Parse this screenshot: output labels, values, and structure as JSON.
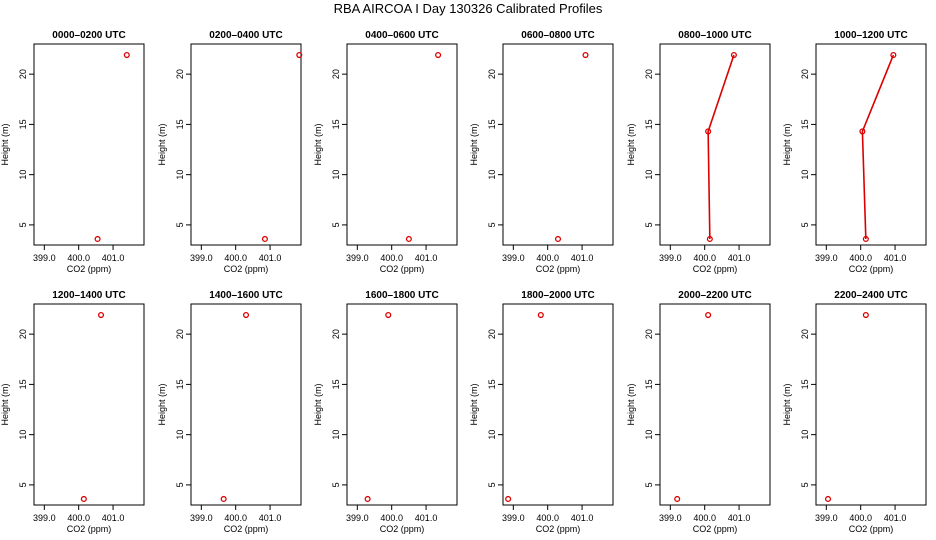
{
  "title": "RBA AIRCOA I  Day 130326  Calibrated Profiles",
  "colors": {
    "series": "#dd0000",
    "axis": "#000000"
  },
  "chart_data": [
    {
      "type": "line",
      "title": "0000–0200 UTC",
      "xlabel": "CO2 (ppm)",
      "ylabel": "Height (m)",
      "xlim": [
        398.7,
        401.9
      ],
      "ylim": [
        3,
        23
      ],
      "xticks": [
        399,
        400,
        401
      ],
      "xticklabels": [
        "399.0",
        "400.0",
        "401.0"
      ],
      "yticks": [
        5,
        10,
        15,
        20
      ],
      "yticklabels": [
        "5",
        "10",
        "15",
        "20"
      ],
      "points": [
        {
          "x": 400.55,
          "y": 3.6
        },
        {
          "x": 401.4,
          "y": 21.9
        }
      ],
      "connected": false
    },
    {
      "type": "line",
      "title": "0200–0400 UTC",
      "xlabel": "CO2 (ppm)",
      "ylabel": "Height (m)",
      "xlim": [
        398.7,
        401.9
      ],
      "ylim": [
        3,
        23
      ],
      "xticks": [
        399,
        400,
        401
      ],
      "xticklabels": [
        "399.0",
        "400.0",
        "401.0"
      ],
      "yticks": [
        5,
        10,
        15,
        20
      ],
      "yticklabels": [
        "5",
        "10",
        "15",
        "20"
      ],
      "points": [
        {
          "x": 400.85,
          "y": 3.6
        },
        {
          "x": 401.85,
          "y": 21.9
        }
      ],
      "connected": false
    },
    {
      "type": "line",
      "title": "0400–0600 UTC",
      "xlabel": "CO2 (ppm)",
      "ylabel": "Height (m)",
      "xlim": [
        398.7,
        401.9
      ],
      "ylim": [
        3,
        23
      ],
      "xticks": [
        399,
        400,
        401
      ],
      "xticklabels": [
        "399.0",
        "400.0",
        "401.0"
      ],
      "yticks": [
        5,
        10,
        15,
        20
      ],
      "yticklabels": [
        "5",
        "10",
        "15",
        "20"
      ],
      "points": [
        {
          "x": 400.5,
          "y": 3.6
        },
        {
          "x": 401.35,
          "y": 21.9
        }
      ],
      "connected": false
    },
    {
      "type": "line",
      "title": "0600–0800 UTC",
      "xlabel": "CO2 (ppm)",
      "ylabel": "Height (m)",
      "xlim": [
        398.7,
        401.9
      ],
      "ylim": [
        3,
        23
      ],
      "xticks": [
        399,
        400,
        401
      ],
      "xticklabels": [
        "399.0",
        "400.0",
        "401.0"
      ],
      "yticks": [
        5,
        10,
        15,
        20
      ],
      "yticklabels": [
        "5",
        "10",
        "15",
        "20"
      ],
      "points": [
        {
          "x": 400.3,
          "y": 3.6
        },
        {
          "x": 401.1,
          "y": 21.9
        }
      ],
      "connected": false
    },
    {
      "type": "line",
      "title": "0800–1000 UTC",
      "xlabel": "CO2 (ppm)",
      "ylabel": "Height (m)",
      "xlim": [
        398.7,
        401.9
      ],
      "ylim": [
        3,
        23
      ],
      "xticks": [
        399,
        400,
        401
      ],
      "xticklabels": [
        "399.0",
        "400.0",
        "401.0"
      ],
      "yticks": [
        5,
        10,
        15,
        20
      ],
      "yticklabels": [
        "5",
        "10",
        "15",
        "20"
      ],
      "points": [
        {
          "x": 400.15,
          "y": 3.6
        },
        {
          "x": 400.1,
          "y": 14.3
        },
        {
          "x": 400.85,
          "y": 21.9
        }
      ],
      "connected": true
    },
    {
      "type": "line",
      "title": "1000–1200 UTC",
      "xlabel": "CO2 (ppm)",
      "ylabel": "Height (m)",
      "xlim": [
        398.7,
        401.9
      ],
      "ylim": [
        3,
        23
      ],
      "xticks": [
        399,
        400,
        401
      ],
      "xticklabels": [
        "399.0",
        "400.0",
        "401.0"
      ],
      "yticks": [
        5,
        10,
        15,
        20
      ],
      "yticklabels": [
        "5",
        "10",
        "15",
        "20"
      ],
      "points": [
        {
          "x": 400.15,
          "y": 3.6
        },
        {
          "x": 400.05,
          "y": 14.3
        },
        {
          "x": 400.95,
          "y": 21.9
        }
      ],
      "connected": true
    },
    {
      "type": "line",
      "title": "1200–1400 UTC",
      "xlabel": "CO2 (ppm)",
      "ylabel": "Height (m)",
      "xlim": [
        398.7,
        401.9
      ],
      "ylim": [
        3,
        23
      ],
      "xticks": [
        399,
        400,
        401
      ],
      "xticklabels": [
        "399.0",
        "400.0",
        "401.0"
      ],
      "yticks": [
        5,
        10,
        15,
        20
      ],
      "yticklabels": [
        "5",
        "10",
        "15",
        "20"
      ],
      "points": [
        {
          "x": 400.15,
          "y": 3.6
        },
        {
          "x": 400.65,
          "y": 21.9
        }
      ],
      "connected": false
    },
    {
      "type": "line",
      "title": "1400–1600 UTC",
      "xlabel": "CO2 (ppm)",
      "ylabel": "Height (m)",
      "xlim": [
        398.7,
        401.9
      ],
      "ylim": [
        3,
        23
      ],
      "xticks": [
        399,
        400,
        401
      ],
      "xticklabels": [
        "399.0",
        "400.0",
        "401.0"
      ],
      "yticks": [
        5,
        10,
        15,
        20
      ],
      "yticklabels": [
        "5",
        "10",
        "15",
        "20"
      ],
      "points": [
        {
          "x": 399.65,
          "y": 3.6
        },
        {
          "x": 400.3,
          "y": 21.9
        }
      ],
      "connected": false
    },
    {
      "type": "line",
      "title": "1600–1800 UTC",
      "xlabel": "CO2 (ppm)",
      "ylabel": "Height (m)",
      "xlim": [
        398.7,
        401.9
      ],
      "ylim": [
        3,
        23
      ],
      "xticks": [
        399,
        400,
        401
      ],
      "xticklabels": [
        "399.0",
        "400.0",
        "401.0"
      ],
      "yticks": [
        5,
        10,
        15,
        20
      ],
      "yticklabels": [
        "5",
        "10",
        "15",
        "20"
      ],
      "points": [
        {
          "x": 399.3,
          "y": 3.6
        },
        {
          "x": 399.9,
          "y": 21.9
        }
      ],
      "connected": false
    },
    {
      "type": "line",
      "title": "1800–2000 UTC",
      "xlabel": "CO2 (ppm)",
      "ylabel": "Height (m)",
      "xlim": [
        398.7,
        401.9
      ],
      "ylim": [
        3,
        23
      ],
      "xticks": [
        399,
        400,
        401
      ],
      "xticklabels": [
        "399.0",
        "400.0",
        "401.0"
      ],
      "yticks": [
        5,
        10,
        15,
        20
      ],
      "yticklabels": [
        "5",
        "10",
        "15",
        "20"
      ],
      "points": [
        {
          "x": 398.85,
          "y": 3.6
        },
        {
          "x": 399.8,
          "y": 21.9
        }
      ],
      "connected": false
    },
    {
      "type": "line",
      "title": "2000–2200 UTC",
      "xlabel": "CO2 (ppm)",
      "ylabel": "Height (m)",
      "xlim": [
        398.7,
        401.9
      ],
      "ylim": [
        3,
        23
      ],
      "xticks": [
        399,
        400,
        401
      ],
      "xticklabels": [
        "399.0",
        "400.0",
        "401.0"
      ],
      "yticks": [
        5,
        10,
        15,
        20
      ],
      "yticklabels": [
        "5",
        "10",
        "15",
        "20"
      ],
      "points": [
        {
          "x": 399.2,
          "y": 3.6
        },
        {
          "x": 400.1,
          "y": 21.9
        }
      ],
      "connected": false
    },
    {
      "type": "line",
      "title": "2200–2400 UTC",
      "xlabel": "CO2 (ppm)",
      "ylabel": "Height (m)",
      "xlim": [
        398.7,
        401.9
      ],
      "ylim": [
        3,
        23
      ],
      "xticks": [
        399,
        400,
        401
      ],
      "xticklabels": [
        "399.0",
        "400.0",
        "401.0"
      ],
      "yticks": [
        5,
        10,
        15,
        20
      ],
      "yticklabels": [
        "5",
        "10",
        "15",
        "20"
      ],
      "points": [
        {
          "x": 399.05,
          "y": 3.6
        },
        {
          "x": 400.15,
          "y": 21.9
        }
      ],
      "connected": false
    }
  ]
}
